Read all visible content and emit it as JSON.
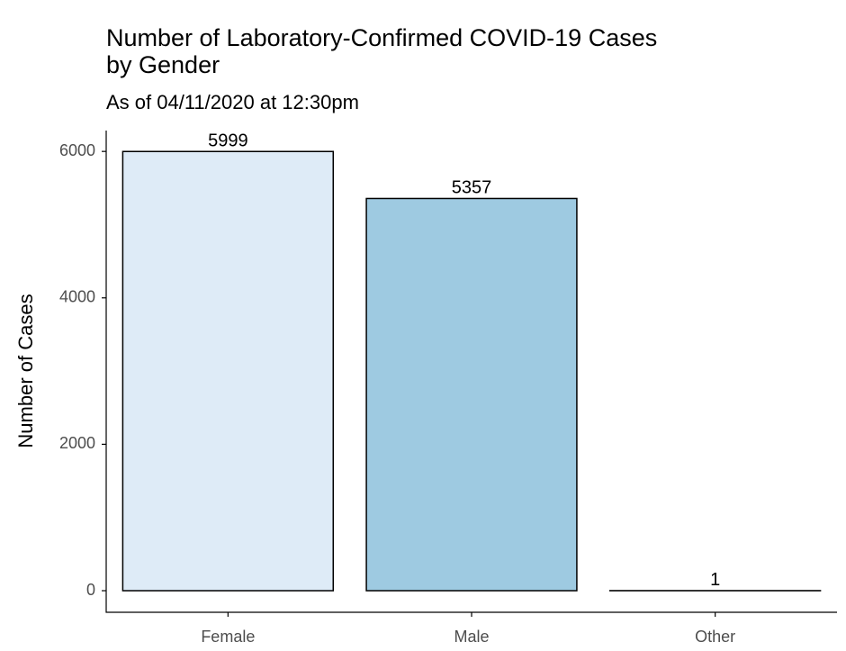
{
  "chart_data": {
    "type": "bar",
    "title": [
      "Number of Laboratory-Confirmed COVID-19 Cases",
      "by Gender"
    ],
    "subtitle": "As of 04/11/2020 at 12:30pm",
    "y_label": "Number of Cases",
    "categories": [
      "Female",
      "Male",
      "Other"
    ],
    "values": [
      5999,
      5357,
      1
    ],
    "colors": [
      "#deebf7",
      "#9ecae1",
      "#3182bd"
    ],
    "ylim": [
      -295,
      6285
    ],
    "yticks": [
      0,
      2000,
      4000,
      6000
    ]
  }
}
